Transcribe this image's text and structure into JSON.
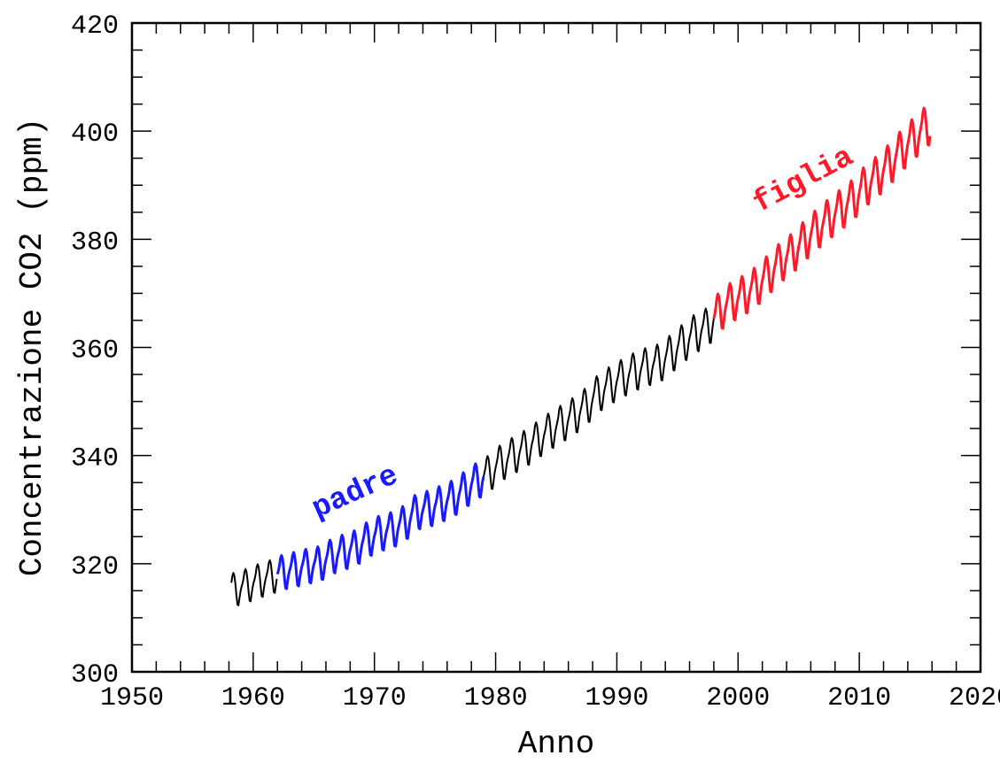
{
  "chart_data": {
    "type": "line",
    "title": "",
    "xlabel": "Anno",
    "ylabel": "Concentrazione CO2 (ppm)",
    "xlim": [
      1950,
      2020
    ],
    "ylim": [
      300,
      420
    ],
    "xticks": [
      "1950",
      "1960",
      "1970",
      "1980",
      "1990",
      "2000",
      "2010",
      "2020"
    ],
    "yticks": [
      "300",
      "320",
      "340",
      "360",
      "380",
      "400",
      "420"
    ],
    "grid": false,
    "annual_mean": {
      "years": [
        1958,
        1959,
        1960,
        1961,
        1962,
        1963,
        1964,
        1965,
        1966,
        1967,
        1968,
        1969,
        1970,
        1971,
        1972,
        1973,
        1974,
        1975,
        1976,
        1977,
        1978,
        1979,
        1980,
        1981,
        1982,
        1983,
        1984,
        1985,
        1986,
        1987,
        1988,
        1989,
        1990,
        1991,
        1992,
        1993,
        1994,
        1995,
        1996,
        1997,
        1998,
        1999,
        2000,
        2001,
        2002,
        2003,
        2004,
        2005,
        2006,
        2007,
        2008,
        2009,
        2010,
        2011,
        2012,
        2013,
        2014,
        2015
      ],
      "values": [
        315.3,
        316.0,
        316.9,
        317.6,
        318.5,
        319.0,
        319.6,
        320.0,
        321.4,
        322.2,
        323.0,
        324.6,
        325.7,
        326.3,
        327.5,
        329.7,
        330.2,
        331.1,
        332.1,
        333.8,
        335.4,
        336.8,
        338.8,
        340.1,
        341.4,
        343.0,
        344.6,
        346.0,
        347.4,
        349.2,
        351.6,
        353.1,
        354.4,
        355.6,
        356.5,
        357.1,
        358.9,
        360.9,
        362.7,
        363.8,
        366.8,
        368.5,
        369.7,
        371.3,
        373.5,
        375.8,
        377.5,
        379.8,
        381.9,
        383.8,
        385.6,
        387.4,
        389.9,
        391.7,
        393.9,
        396.5,
        398.7,
        400.8
      ]
    },
    "seasonal_offsets_by_month": [
      0.0,
      0.6,
      1.4,
      2.6,
      3.1,
      2.5,
      0.9,
      -1.2,
      -3.0,
      -3.2,
      -2.0,
      -0.8
    ],
    "series": [
      {
        "name": "black-early",
        "from": 1958.2,
        "to": 1962.0,
        "color": "#000000"
      },
      {
        "name": "padre",
        "from": 1962.0,
        "to": 1979.0,
        "color": "#1a1aff"
      },
      {
        "name": "black-middle",
        "from": 1979.0,
        "to": 1998.0,
        "color": "#000000"
      },
      {
        "name": "figlia",
        "from": 1998.0,
        "to": 2015.9,
        "color": "#ff1a2a"
      }
    ],
    "annotations": [
      {
        "text": "padre",
        "color": "#1a1aff"
      },
      {
        "text": "figlia",
        "color": "#ff1a2a"
      }
    ]
  }
}
